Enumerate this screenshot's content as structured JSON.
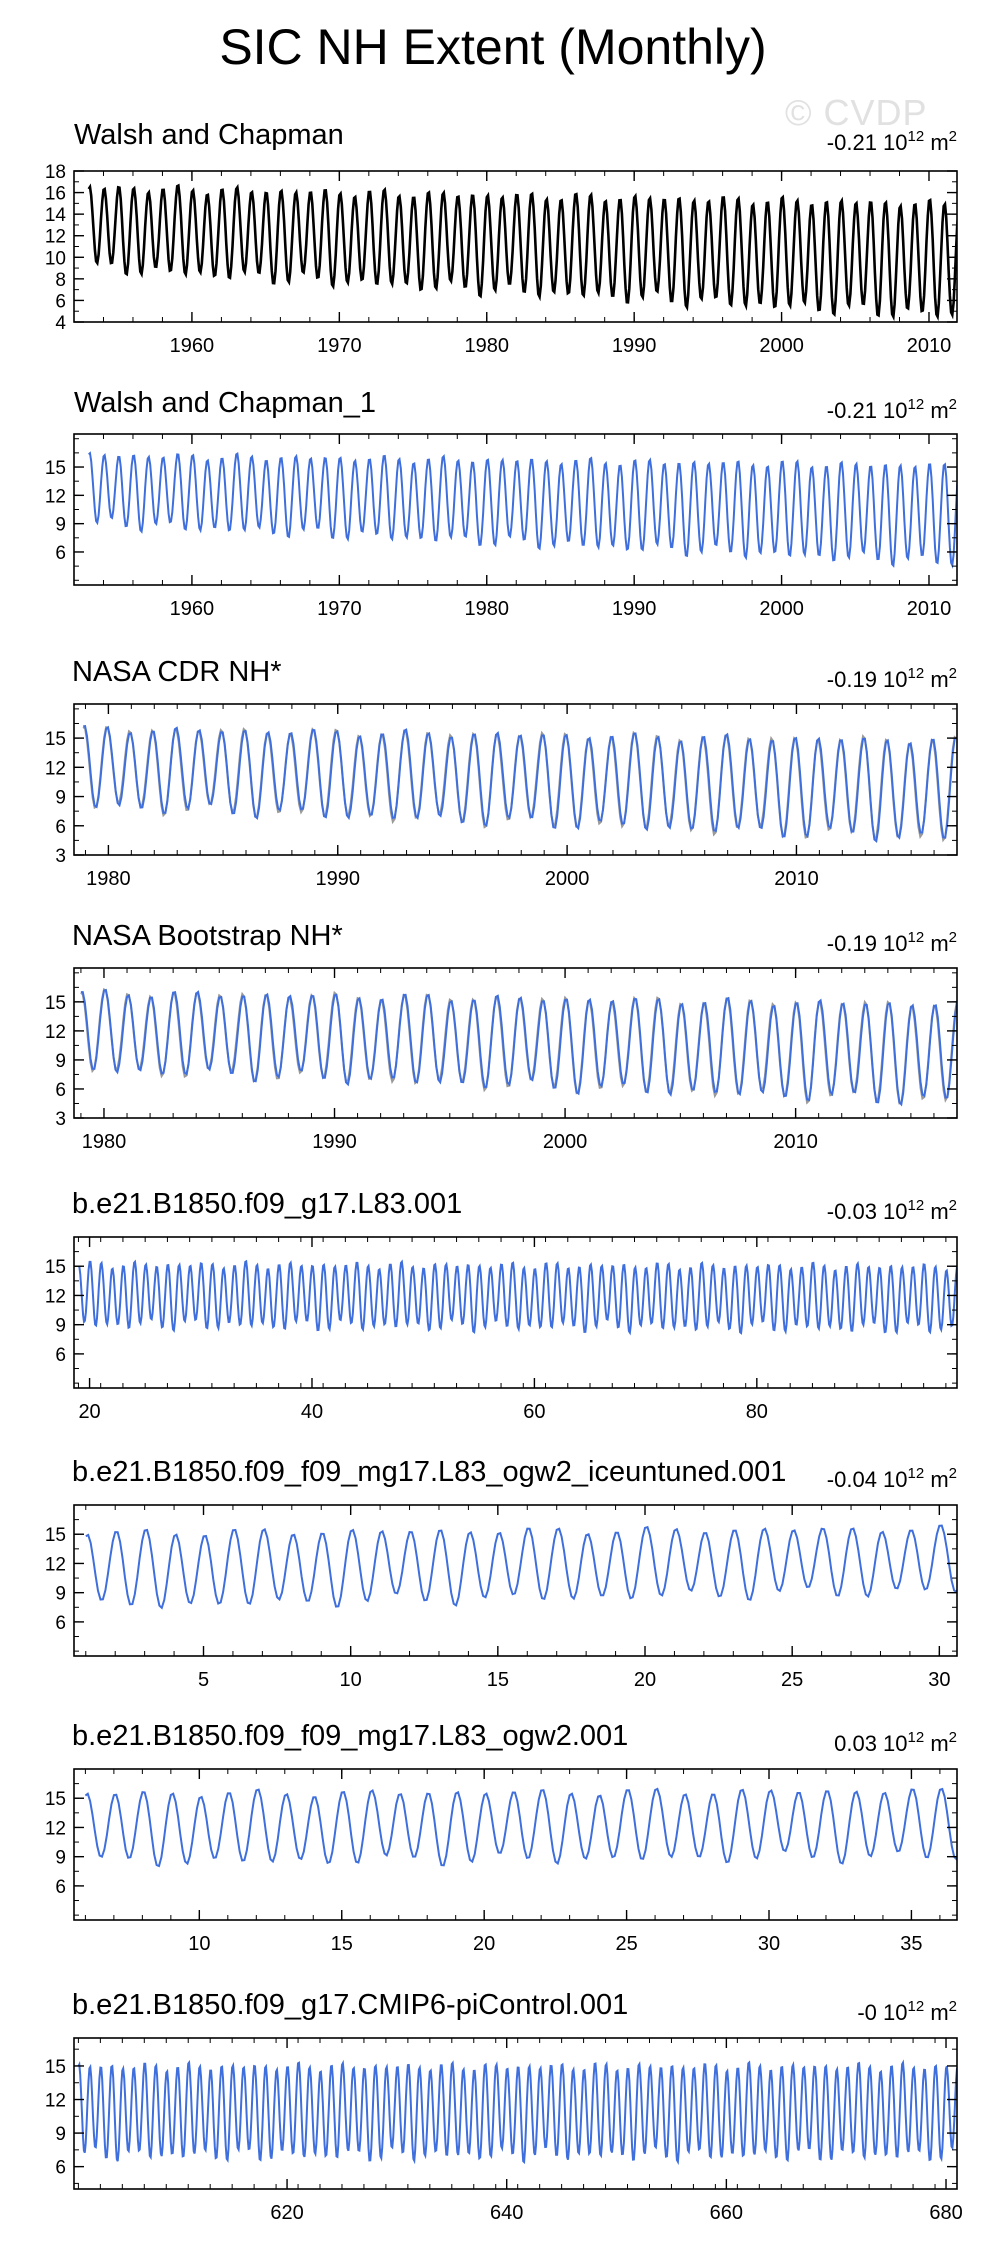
{
  "figure": {
    "title": "SIC NH Extent (Monthly)",
    "watermark": "© CVDP",
    "unit_text": "10",
    "unit_exp": "12",
    "unit_tail": " m",
    "unit_sq": "2"
  },
  "colors": {
    "obs_line": "#000000",
    "model_line": "#3f6fdc",
    "reference_line": "#9a9a9a",
    "frame": "#000000"
  },
  "chart_data": [
    {
      "type": "line",
      "title": "Walsh and Chapman",
      "trend": "-0.21",
      "x_start": 1953.0,
      "x_end": 2012.0,
      "xlim": [
        1952.0,
        2011.9
      ],
      "xticks": [
        1960,
        1970,
        1980,
        1990,
        2000,
        2010
      ],
      "ylim": [
        4,
        18
      ],
      "yticks": [
        4,
        6,
        8,
        10,
        12,
        14,
        16,
        18
      ],
      "series": [
        {
          "color": "#000000",
          "max_start": 16.5,
          "max_end": 15.0,
          "min_start": 9.0,
          "min_end": 4.5
        }
      ]
    },
    {
      "type": "line",
      "title": "Walsh and Chapman_1",
      "trend": "-0.21",
      "x_start": 1953.0,
      "x_end": 2012.0,
      "xlim": [
        1952.0,
        2011.9
      ],
      "xticks": [
        1960,
        1970,
        1980,
        1990,
        2000,
        2010
      ],
      "ylim": [
        2.5,
        18.5
      ],
      "yticks": [
        6,
        9,
        12,
        15
      ],
      "series": [
        {
          "color": "#3f6fdc",
          "max_start": 16.3,
          "max_end": 15.2,
          "min_start": 9.0,
          "min_end": 4.8
        }
      ]
    },
    {
      "type": "line",
      "title": "NASA CDR NH*",
      "trend": "-0.19",
      "x_start": 1978.9,
      "x_end": 2017.0,
      "xlim": [
        1978.5,
        2017.0
      ],
      "xticks": [
        1980,
        1990,
        2000,
        2010
      ],
      "ylim": [
        3,
        18.5
      ],
      "yticks": [
        3,
        6,
        9,
        12,
        15
      ],
      "series": [
        {
          "color": "#9a9a9a",
          "max_start": 16.0,
          "max_end": 14.8,
          "min_start": 8.0,
          "min_end": 4.6,
          "offset": 0.2
        },
        {
          "color": "#3f6fdc",
          "max_start": 16.0,
          "max_end": 14.8,
          "min_start": 8.0,
          "min_end": 4.6
        }
      ]
    },
    {
      "type": "line",
      "title": "NASA Bootstrap NH*",
      "trend": "-0.19",
      "x_start": 1979.0,
      "x_end": 2017.0,
      "xlim": [
        1978.7,
        2017.0
      ],
      "xticks": [
        1980,
        1990,
        2000,
        2010
      ],
      "ylim": [
        3,
        18.5
      ],
      "yticks": [
        3,
        6,
        9,
        12,
        15
      ],
      "series": [
        {
          "color": "#9a9a9a",
          "max_start": 16.0,
          "max_end": 14.8,
          "min_start": 8.0,
          "min_end": 4.6,
          "offset": 0.2
        },
        {
          "color": "#3f6fdc",
          "max_start": 16.0,
          "max_end": 14.8,
          "min_start": 8.0,
          "min_end": 4.6
        }
      ]
    },
    {
      "type": "line",
      "title": "b.e21.B1850.f09_g17.L83.001",
      "trend": "-0.03",
      "x_start": 19.0,
      "x_end": 98.0,
      "xlim": [
        18.6,
        98.0
      ],
      "xticks": [
        20,
        40,
        60,
        80
      ],
      "ylim": [
        2.5,
        18.0
      ],
      "yticks": [
        6,
        9,
        12,
        15
      ],
      "series": [
        {
          "color": "#3f6fdc",
          "max_start": 15.2,
          "max_end": 15.0,
          "min_start": 9.0,
          "min_end": 8.6
        }
      ]
    },
    {
      "type": "line",
      "title": "b.e21.B1850.f09_f09_mg17.L83_ogw2_iceuntuned.001",
      "trend": "-0.04",
      "x_start": 1.0,
      "x_end": 31.0,
      "xlim": [
        0.6,
        30.6
      ],
      "xticks": [
        5,
        10,
        15,
        20,
        25,
        30
      ],
      "ylim": [
        2.5,
        18.0
      ],
      "yticks": [
        6,
        9,
        12,
        15
      ],
      "series": [
        {
          "color": "#3f6fdc",
          "max_start": 15.2,
          "max_end": 15.6,
          "min_start": 7.6,
          "min_end": 9.2
        }
      ]
    },
    {
      "type": "line",
      "title": "b.e21.B1850.f09_f09_mg17.L83_ogw2.001",
      "trend": "0.03",
      "x_start": 6.0,
      "x_end": 37.0,
      "xlim": [
        5.6,
        36.6
      ],
      "xticks": [
        10,
        15,
        20,
        25,
        30,
        35
      ],
      "ylim": [
        2.5,
        18.0
      ],
      "yticks": [
        6,
        9,
        12,
        15
      ],
      "series": [
        {
          "color": "#3f6fdc",
          "max_start": 15.5,
          "max_end": 15.8,
          "min_start": 8.4,
          "min_end": 9.0
        }
      ]
    },
    {
      "type": "line",
      "title": "b.e21.B1850.f09_g17.CMIP6-piControl.001",
      "trend": "-0",
      "x_start": 601.0,
      "x_end": 681.0,
      "xlim": [
        600.6,
        681.0
      ],
      "xticks": [
        620,
        640,
        660,
        680
      ],
      "ylim": [
        4,
        17.5
      ],
      "yticks": [
        6,
        9,
        12,
        15
      ],
      "series": [
        {
          "color": "#3f6fdc",
          "max_start": 15.0,
          "max_end": 15.0,
          "min_start": 7.0,
          "min_end": 7.0
        }
      ]
    }
  ]
}
